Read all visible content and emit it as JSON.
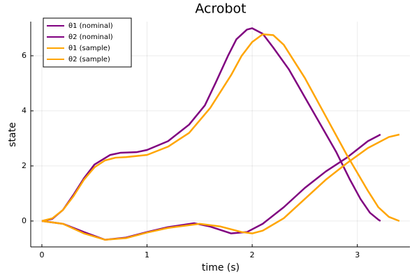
{
  "chart_data": {
    "type": "line",
    "title": "Acrobot",
    "xlabel": "time (s)",
    "ylabel": "state",
    "xlim": [
      -0.106,
      3.5
    ],
    "ylim": [
      -0.94,
      7.24
    ],
    "xticks": [
      0,
      1,
      2,
      3
    ],
    "yticks": [
      0,
      2,
      4,
      6
    ],
    "grid": true,
    "legend": "top-left",
    "series": [
      {
        "name": "θ1 (nominal)",
        "color": "#800080",
        "x": [
          0,
          0.1,
          0.2,
          0.3,
          0.4,
          0.5,
          0.65,
          0.75,
          0.9,
          1.0,
          1.2,
          1.4,
          1.55,
          1.65,
          1.77,
          1.85,
          1.95,
          2.0,
          2.1,
          2.2,
          2.35,
          2.5,
          2.65,
          2.8,
          2.93,
          3.03,
          3.12,
          3.2,
          3.22
        ],
        "values": [
          0,
          0.08,
          0.4,
          0.95,
          1.55,
          2.05,
          2.4,
          2.48,
          2.5,
          2.58,
          2.9,
          3.5,
          4.2,
          5.0,
          6.0,
          6.6,
          6.95,
          7.0,
          6.8,
          6.3,
          5.5,
          4.5,
          3.5,
          2.5,
          1.5,
          0.8,
          0.3,
          0.05,
          0
        ]
      },
      {
        "name": "θ2 (nominal)",
        "color": "#800080",
        "x": [
          0,
          0.2,
          0.4,
          0.6,
          0.8,
          1.0,
          1.2,
          1.45,
          1.6,
          1.8,
          1.95,
          2.1,
          2.3,
          2.5,
          2.7,
          2.9,
          3.0,
          3.1,
          3.2,
          3.22
        ],
        "values": [
          0,
          -0.1,
          -0.4,
          -0.68,
          -0.6,
          -0.4,
          -0.22,
          -0.08,
          -0.2,
          -0.45,
          -0.4,
          -0.1,
          0.5,
          1.2,
          1.8,
          2.3,
          2.6,
          2.9,
          3.1,
          3.14
        ]
      },
      {
        "name": "θ1 (sample)",
        "color": "#ffa500",
        "x": [
          0,
          0.1,
          0.2,
          0.3,
          0.4,
          0.5,
          0.6,
          0.7,
          0.8,
          1.0,
          1.2,
          1.4,
          1.6,
          1.8,
          1.9,
          2.0,
          2.1,
          2.2,
          2.3,
          2.5,
          2.7,
          2.9,
          3.1,
          3.2,
          3.3,
          3.4
        ],
        "values": [
          0,
          0.1,
          0.4,
          0.9,
          1.5,
          1.95,
          2.2,
          2.3,
          2.32,
          2.4,
          2.7,
          3.2,
          4.1,
          5.3,
          6.0,
          6.5,
          6.78,
          6.75,
          6.4,
          5.2,
          3.8,
          2.4,
          1.1,
          0.5,
          0.15,
          0
        ]
      },
      {
        "name": "θ2 (sample)",
        "color": "#ffa500",
        "x": [
          0,
          0.2,
          0.4,
          0.6,
          0.8,
          1.0,
          1.2,
          1.5,
          1.7,
          1.9,
          2.0,
          2.1,
          2.3,
          2.5,
          2.7,
          2.9,
          3.1,
          3.3,
          3.4
        ],
        "values": [
          0,
          -0.1,
          -0.45,
          -0.68,
          -0.62,
          -0.42,
          -0.25,
          -0.1,
          -0.2,
          -0.4,
          -0.45,
          -0.35,
          0.1,
          0.8,
          1.5,
          2.1,
          2.65,
          3.05,
          3.14
        ]
      }
    ]
  }
}
